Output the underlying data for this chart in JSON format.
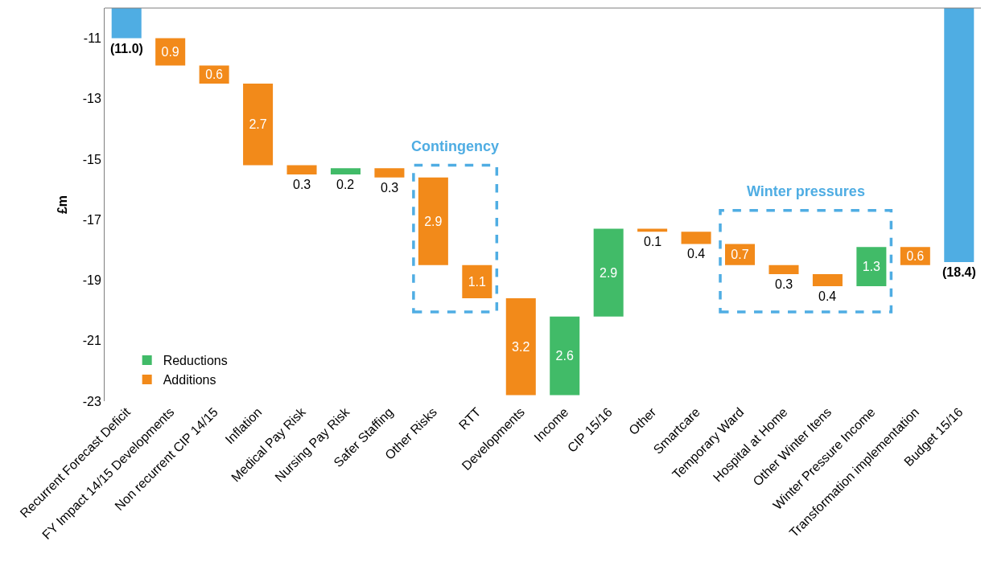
{
  "chart_data": {
    "type": "bar",
    "ylabel": "£m",
    "categories": [
      "Recurrent Forecast Deficit",
      "FY Impact 14/15 Developments",
      "Non recurrent CIP 14/15",
      "Inflation",
      "Medical Pay Risk",
      "Nursing Pay Risk",
      "Safer Staffing",
      "Other Risks",
      "RTT",
      "Developments",
      "Income",
      "CIP 15/16",
      "Other",
      "Smartcare",
      "Temporary Ward",
      "Hospital at Home",
      "Other Winter Itens",
      "Winter Pressure Income",
      "Transformation implementation",
      "Budget 15/16"
    ],
    "series": [
      {
        "color": "#4fade3",
        "base": [
          0,
          null,
          null,
          null,
          null,
          null,
          null,
          null,
          null,
          null,
          null,
          null,
          null,
          null,
          null,
          null,
          null,
          null,
          null,
          0
        ],
        "values": [
          -11.0,
          null,
          null,
          null,
          null,
          null,
          null,
          null,
          null,
          null,
          null,
          null,
          null,
          null,
          null,
          null,
          null,
          null,
          null,
          -18.4
        ],
        "value_labels": [
          "(11.0)",
          null,
          null,
          null,
          null,
          null,
          null,
          null,
          null,
          null,
          null,
          null,
          null,
          null,
          null,
          null,
          null,
          null,
          null,
          "(18.4)"
        ]
      },
      {
        "name": "Reductions",
        "color": "#41bb68",
        "base": [
          null,
          null,
          null,
          null,
          null,
          -15.5,
          null,
          null,
          null,
          null,
          -22.8,
          -20.2,
          null,
          null,
          null,
          null,
          null,
          -19.2,
          null,
          null
        ],
        "values": [
          null,
          null,
          null,
          null,
          null,
          0.2,
          null,
          null,
          null,
          null,
          2.6,
          2.9,
          null,
          null,
          null,
          null,
          null,
          1.3,
          null,
          null
        ],
        "value_labels": [
          null,
          null,
          null,
          null,
          null,
          "0.2",
          null,
          null,
          null,
          null,
          "2.6",
          "2.9",
          null,
          null,
          null,
          null,
          null,
          "1.3",
          null,
          null
        ]
      },
      {
        "name": "Additions",
        "color": "#f28a1a",
        "base": [
          null,
          -11.0,
          -11.9,
          -12.5,
          -15.2,
          null,
          -15.3,
          -15.6,
          -18.5,
          -19.6,
          null,
          null,
          -17.3,
          -17.4,
          -17.8,
          -18.5,
          -18.8,
          null,
          -17.9,
          null
        ],
        "values": [
          null,
          -0.9,
          -0.6,
          -2.7,
          -0.3,
          null,
          -0.3,
          -2.9,
          -1.1,
          -3.2,
          null,
          null,
          -0.1,
          -0.4,
          -0.7,
          -0.3,
          -0.4,
          null,
          -0.6,
          null
        ],
        "value_labels": [
          null,
          "0.9",
          "0.6",
          "2.7",
          "0.3",
          null,
          "0.3",
          "2.9",
          "1.1",
          "3.2",
          null,
          null,
          "0.1",
          "0.4",
          "0.7",
          "0.3",
          "0.4",
          null,
          "0.6",
          null
        ]
      }
    ],
    "ylim": [
      -23,
      -10
    ],
    "yticks": [
      -11,
      -13,
      -15,
      -17,
      -19,
      -21,
      -23
    ],
    "annotations": [
      "Contingency",
      "Winter pressures"
    ],
    "legend": "bottom left"
  }
}
